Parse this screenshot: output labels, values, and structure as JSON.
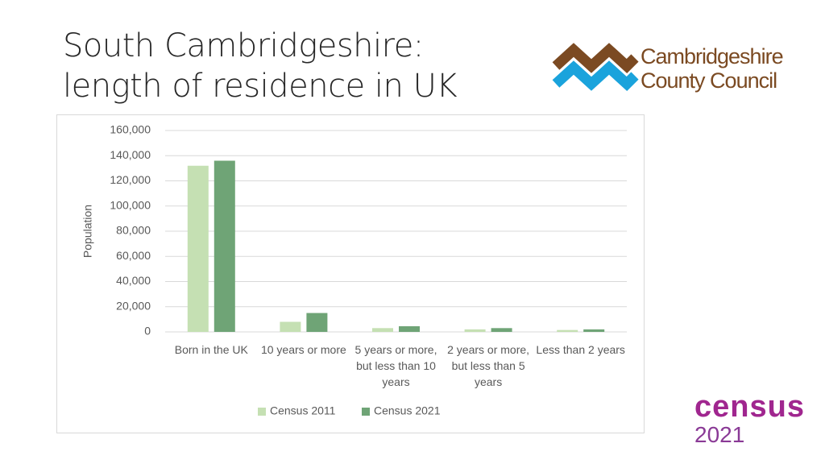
{
  "slide_title": "South Cambridgeshire: length of residence in UK",
  "logo": {
    "line1": "Cambridgeshire",
    "line2": "County Council"
  },
  "census_logo": {
    "word": "census",
    "year": "2021"
  },
  "chart_data": {
    "type": "bar",
    "y_label": "Population",
    "categories": [
      "Born in the UK",
      "10 years or more",
      "5 years or more, but less than 10 years",
      "2 years or more, but less than 5 years",
      "Less than 2 years"
    ],
    "series": [
      {
        "name": "Census 2011",
        "color": "#c5e0b3",
        "values": [
          132000,
          8000,
          3000,
          2000,
          1500
        ]
      },
      {
        "name": "Census 2021",
        "color": "#6fa476",
        "values": [
          136000,
          15000,
          4500,
          3000,
          2000
        ]
      }
    ],
    "ylim": [
      0,
      160000
    ],
    "yticks": [
      0,
      {
        "value": 20000,
        "label": "20,000"
      },
      {
        "value": 40000,
        "label": "40,000"
      },
      {
        "value": 60000,
        "label": "60,000"
      },
      {
        "value": 80000,
        "label": "80,000"
      },
      {
        "value": 100000,
        "label": "100,000"
      },
      {
        "value": 120000,
        "label": "120,000"
      },
      {
        "value": 140000,
        "label": "140,000"
      },
      {
        "value": 160000,
        "label": "160,000"
      }
    ],
    "grid": true,
    "legend": "bottom"
  }
}
